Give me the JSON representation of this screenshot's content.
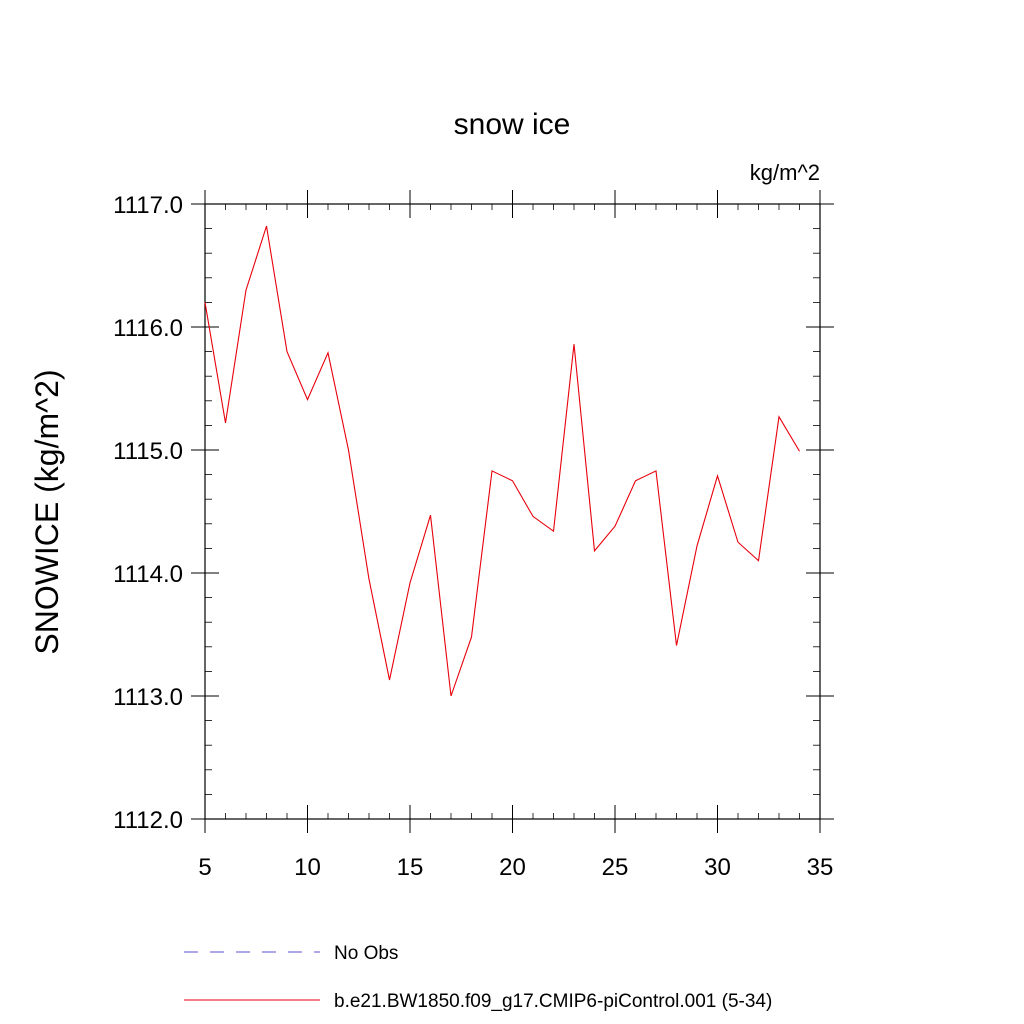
{
  "chart_data": {
    "type": "line",
    "title": "snow ice",
    "units": "kg/m^2",
    "ylabel": "SNOWICE  (kg/m^2)",
    "xlabel": "",
    "xlim": [
      5,
      35
    ],
    "ylim": [
      1112.0,
      1117.0
    ],
    "x_ticks": [
      5,
      10,
      15,
      20,
      25,
      30,
      35
    ],
    "x_tick_labels": [
      "5",
      "10",
      "15",
      "20",
      "25",
      "30",
      "35"
    ],
    "y_ticks": [
      1112.0,
      1113.0,
      1114.0,
      1115.0,
      1116.0,
      1117.0
    ],
    "y_tick_labels": [
      "1112.0",
      "1113.0",
      "1114.0",
      "1115.0",
      "1116.0",
      "1117.0"
    ],
    "x_minor_step": 1,
    "y_minor_step": 0.2,
    "grid": false,
    "legend_placement": "bottom",
    "legend": [
      {
        "label": "No Obs",
        "color": "#5a4fcf",
        "style": "dashed"
      },
      {
        "label": "b.e21.BW1850.f09_g17.CMIP6-piControl.001 (5-34)",
        "color": "#e8000b",
        "style": "solid"
      }
    ],
    "series": [
      {
        "name": "b.e21.BW1850.f09_g17.CMIP6-piControl.001 (5-34)",
        "color": "#e8000b",
        "x": [
          5,
          6,
          7,
          8,
          9,
          10,
          11,
          12,
          13,
          14,
          15,
          16,
          17,
          18,
          19,
          20,
          21,
          22,
          23,
          24,
          25,
          26,
          27,
          28,
          29,
          30,
          31,
          32,
          33,
          34
        ],
        "values": [
          1116.2,
          1115.22,
          1116.3,
          1116.82,
          1115.8,
          1115.41,
          1115.79,
          1115.0,
          1113.95,
          1113.13,
          1113.92,
          1114.47,
          1113.0,
          1113.48,
          1114.83,
          1114.75,
          1114.46,
          1114.34,
          1115.86,
          1114.18,
          1114.38,
          1114.75,
          1114.83,
          1113.41,
          1114.22,
          1114.79,
          1114.25,
          1114.1,
          1115.27,
          1114.99
        ]
      }
    ]
  }
}
